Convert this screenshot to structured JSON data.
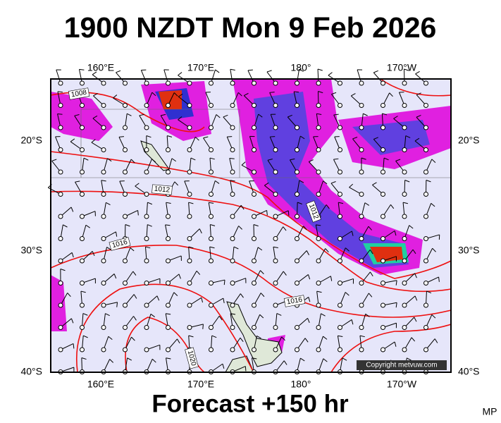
{
  "header": {
    "title": "1900 NZDT Mon 9 Feb 2026"
  },
  "map": {
    "lon_labels": [
      "160°E",
      "170°E",
      "180°",
      "170°W"
    ],
    "lat_labels": [
      "20°S",
      "30°S",
      "40°S"
    ],
    "isobar_labels": [
      "1008",
      "1012",
      "1016",
      "1012",
      "1016",
      "1020"
    ],
    "copyright": "Copyright metvuw.com"
  },
  "footer": {
    "forecast": "Forecast +150 hr",
    "credit": "MP"
  }
}
